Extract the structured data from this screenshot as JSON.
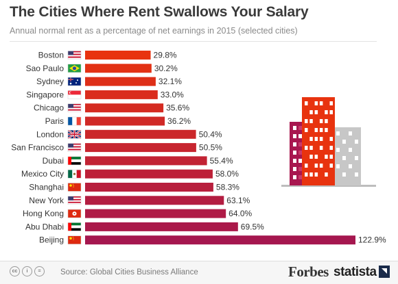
{
  "header": {
    "title": "The Cities Where Rent Swallows Your Salary",
    "subtitle": "Annual normal rent as a percentage of net earnings in 2015 (selected cities)"
  },
  "chart_data": {
    "type": "bar",
    "orientation": "horizontal",
    "categories": [
      "Boston",
      "Sao Paulo",
      "Sydney",
      "Singapore",
      "Chicago",
      "Paris",
      "London",
      "San Francisco",
      "Dubai",
      "Mexico City",
      "Shanghai",
      "New York",
      "Hong Kong",
      "Abu Dhabi",
      "Beijing"
    ],
    "values": [
      29.8,
      30.2,
      32.1,
      33.0,
      35.6,
      36.2,
      50.4,
      50.5,
      55.4,
      58.0,
      58.3,
      63.1,
      64.0,
      69.5,
      122.9
    ],
    "value_labels": [
      "29.8%",
      "30.2%",
      "32.1%",
      "33.0%",
      "35.6%",
      "36.2%",
      "50.4%",
      "50.5%",
      "55.4%",
      "58.0%",
      "58.3%",
      "63.1%",
      "64.0%",
      "69.5%",
      "122.9%"
    ],
    "flags": [
      "us-flag-icon",
      "brazil-flag-icon",
      "australia-flag-icon",
      "singapore-flag-icon",
      "us-flag-icon",
      "france-flag-icon",
      "uk-flag-icon",
      "us-flag-icon",
      "uae-flag-icon",
      "mexico-flag-icon",
      "china-flag-icon",
      "us-flag-icon",
      "hong-kong-flag-icon",
      "uae-flag-icon",
      "china-flag-icon"
    ],
    "xlim": [
      0,
      122.9
    ],
    "grid": false,
    "colors": {
      "start": "#e8330f",
      "end": "#a5174f"
    }
  },
  "footer": {
    "license_icons": [
      "cc",
      "i",
      "="
    ],
    "source": "Source: Global Cities Business Alliance",
    "brand1": "Forbes",
    "brand2": "statista"
  }
}
